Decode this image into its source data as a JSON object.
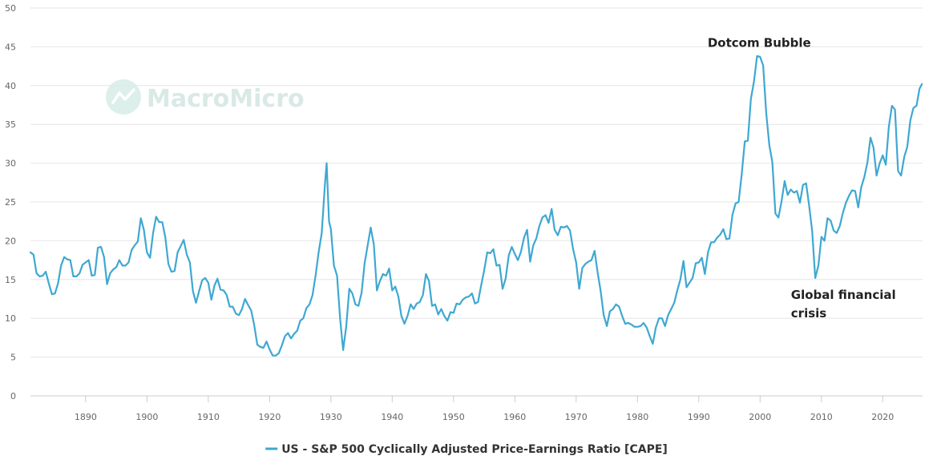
{
  "watermark": "MacroMicro",
  "chart_data": {
    "type": "line",
    "title": "",
    "xlabel": "",
    "ylabel": "",
    "xlim": [
      1881,
      2026.5
    ],
    "ylim": [
      0,
      50
    ],
    "y_ticks": [
      0,
      5,
      10,
      15,
      20,
      25,
      30,
      35,
      40,
      45,
      50
    ],
    "x_ticks": [
      1890,
      1900,
      1910,
      1920,
      1930,
      1940,
      1950,
      1960,
      1970,
      1980,
      1990,
      2000,
      2010,
      2020
    ],
    "grid": "horizontal",
    "legend_position": "bottom-center",
    "series_color": "#3ea8d2",
    "annotations": [
      {
        "text": "Dotcom Bubble",
        "x": 2000,
        "y": 45.5
      },
      {
        "text": "Global financial crisis",
        "lines": [
          "Global financial",
          "crisis"
        ],
        "x": 2010,
        "y": 12.5
      }
    ],
    "series": [
      {
        "name": "US - S&P 500 Cyclically Adjusted Price-Earnings Ratio [CAPE]",
        "x": [
          1881,
          1881.5,
          1882,
          1882.5,
          1883,
          1883.5,
          1884,
          1884.5,
          1885,
          1885.5,
          1886,
          1886.5,
          1887,
          1887.5,
          1888,
          1888.5,
          1889,
          1889.5,
          1890,
          1890.5,
          1891,
          1891.5,
          1892,
          1892.5,
          1893,
          1893.5,
          1894,
          1894.5,
          1895,
          1895.5,
          1896,
          1896.5,
          1897,
          1897.5,
          1898,
          1898.5,
          1899,
          1899.5,
          1900,
          1900.5,
          1901,
          1901.5,
          1902,
          1902.5,
          1903,
          1903.5,
          1904,
          1904.5,
          1905,
          1905.5,
          1906,
          1906.5,
          1907,
          1907.5,
          1908,
          1908.5,
          1909,
          1909.5,
          1910,
          1910.5,
          1911,
          1911.5,
          1912,
          1912.5,
          1913,
          1913.5,
          1914,
          1914.5,
          1915,
          1915.5,
          1916,
          1916.5,
          1917,
          1917.5,
          1918,
          1918.5,
          1919,
          1919.5,
          1920,
          1920.5,
          1921,
          1921.5,
          1922,
          1922.5,
          1923,
          1923.5,
          1924,
          1924.5,
          1925,
          1925.5,
          1926,
          1926.5,
          1927,
          1927.5,
          1928,
          1928.5,
          1929,
          1929.3,
          1929.7,
          1930,
          1930.5,
          1931,
          1931.5,
          1932,
          1932.5,
          1933,
          1933.5,
          1934,
          1934.5,
          1935,
          1935.5,
          1936,
          1936.5,
          1937,
          1937.5,
          1938,
          1938.5,
          1939,
          1939.5,
          1940,
          1940.5,
          1941,
          1941.5,
          1942,
          1942.5,
          1943,
          1943.5,
          1944,
          1944.5,
          1945,
          1945.5,
          1946,
          1946.5,
          1947,
          1947.5,
          1948,
          1948.5,
          1949,
          1949.5,
          1950,
          1950.5,
          1951,
          1951.5,
          1952,
          1952.5,
          1953,
          1953.5,
          1954,
          1954.5,
          1955,
          1955.5,
          1956,
          1956.5,
          1957,
          1957.5,
          1958,
          1958.5,
          1959,
          1959.5,
          1960,
          1960.5,
          1961,
          1961.5,
          1962,
          1962.5,
          1963,
          1963.5,
          1964,
          1964.5,
          1965,
          1965.5,
          1966,
          1966.5,
          1967,
          1967.5,
          1968,
          1968.5,
          1969,
          1969.5,
          1970,
          1970.5,
          1971,
          1971.5,
          1972,
          1972.5,
          1973,
          1973.5,
          1974,
          1974.5,
          1975,
          1975.5,
          1976,
          1976.5,
          1977,
          1977.5,
          1978,
          1978.5,
          1979,
          1979.5,
          1980,
          1980.5,
          1981,
          1981.5,
          1982,
          1982.5,
          1983,
          1983.5,
          1984,
          1984.5,
          1985,
          1985.5,
          1986,
          1986.5,
          1987,
          1987.5,
          1988,
          1988.5,
          1989,
          1989.5,
          1990,
          1990.5,
          1991,
          1991.5,
          1992,
          1992.5,
          1993,
          1993.5,
          1994,
          1994.5,
          1995,
          1995.5,
          1996,
          1996.5,
          1997,
          1997.5,
          1998,
          1998.5,
          1999,
          1999.5,
          2000,
          2000.5,
          2001,
          2001.5,
          2002,
          2002.5,
          2003,
          2003.5,
          2004,
          2004.5,
          2005,
          2005.5,
          2006,
          2006.5,
          2007,
          2007.5,
          2008,
          2008.5,
          2009,
          2009.5,
          2010,
          2010.5,
          2011,
          2011.5,
          2012,
          2012.5,
          2013,
          2013.5,
          2014,
          2014.5,
          2015,
          2015.5,
          2016,
          2016.5,
          2017,
          2017.5,
          2018,
          2018.5,
          2019,
          2019.5,
          2020,
          2020.5,
          2021,
          2021.5,
          2022,
          2022.5,
          2023,
          2023.5,
          2024,
          2024.5,
          2025,
          2025.5,
          2026,
          2026.4
        ],
        "y": [
          18.5,
          18.2,
          15.8,
          15.4,
          15.5,
          16.0,
          14.5,
          13.1,
          13.2,
          14.5,
          16.8,
          17.9,
          17.6,
          17.5,
          15.4,
          15.4,
          15.8,
          16.9,
          17.2,
          17.5,
          15.5,
          15.6,
          19.1,
          19.2,
          17.9,
          14.4,
          15.8,
          16.3,
          16.6,
          17.5,
          16.8,
          16.8,
          17.2,
          18.8,
          19.4,
          19.9,
          22.9,
          21.4,
          18.5,
          17.8,
          21.0,
          23.1,
          22.4,
          22.4,
          20.4,
          17.0,
          16.0,
          16.1,
          18.5,
          19.3,
          20.1,
          18.2,
          17.2,
          13.5,
          12.0,
          13.5,
          14.9,
          15.2,
          14.6,
          12.4,
          14.2,
          15.1,
          13.7,
          13.6,
          13.0,
          11.5,
          11.5,
          10.6,
          10.4,
          11.2,
          12.5,
          11.7,
          11.0,
          9.1,
          6.6,
          6.3,
          6.2,
          7.0,
          6.0,
          5.2,
          5.2,
          5.5,
          6.5,
          7.7,
          8.1,
          7.4,
          8.0,
          8.4,
          9.7,
          10.0,
          11.3,
          11.8,
          13.0,
          15.5,
          18.5,
          21.0,
          27.0,
          30.0,
          22.5,
          21.5,
          16.8,
          15.5,
          10.0,
          5.9,
          8.9,
          13.8,
          13.2,
          11.8,
          11.6,
          13.3,
          17.1,
          19.4,
          21.7,
          19.5,
          13.6,
          14.8,
          15.7,
          15.5,
          16.4,
          13.6,
          14.1,
          12.8,
          10.3,
          9.3,
          10.3,
          11.8,
          11.2,
          11.9,
          12.1,
          13.0,
          15.7,
          14.8,
          11.6,
          11.8,
          10.5,
          11.2,
          10.3,
          9.7,
          10.8,
          10.7,
          11.9,
          11.8,
          12.4,
          12.7,
          12.8,
          13.2,
          11.9,
          12.1,
          14.2,
          16.2,
          18.5,
          18.4,
          18.9,
          16.8,
          16.9,
          13.8,
          15.1,
          18.1,
          19.2,
          18.3,
          17.5,
          18.6,
          20.4,
          21.4,
          17.3,
          19.4,
          20.3,
          21.9,
          23.0,
          23.3,
          22.3,
          24.1,
          21.4,
          20.7,
          21.8,
          21.7,
          21.9,
          21.3,
          18.9,
          17.2,
          13.8,
          16.5,
          17.0,
          17.3,
          17.5,
          18.7,
          15.9,
          13.5,
          10.4,
          9.0,
          10.9,
          11.2,
          11.8,
          11.5,
          10.3,
          9.3,
          9.4,
          9.2,
          8.9,
          8.9,
          9.0,
          9.4,
          8.8,
          7.7,
          6.7,
          8.8,
          10.0,
          10.0,
          9.0,
          10.4,
          11.2,
          12.0,
          13.6,
          15.0,
          17.4,
          14.0,
          14.6,
          15.2,
          17.1,
          17.2,
          17.8,
          15.7,
          18.5,
          19.8,
          19.8,
          20.4,
          20.8,
          21.5,
          20.2,
          20.3,
          23.4,
          24.8,
          25.0,
          28.5,
          32.8,
          32.9,
          38.3,
          40.5,
          43.8,
          43.7,
          42.6,
          36.5,
          32.3,
          30.1,
          23.5,
          23.0,
          25.1,
          27.7,
          25.9,
          26.6,
          26.2,
          26.4,
          24.9,
          27.2,
          27.4,
          24.5,
          21.2,
          15.2,
          16.8,
          20.5,
          20.0,
          22.9,
          22.6,
          21.3,
          21.0,
          21.9,
          23.6,
          24.9,
          25.8,
          26.5,
          26.4,
          24.3,
          26.9,
          28.2,
          30.1,
          33.3,
          32.0,
          28.4,
          30.0,
          31.0,
          29.8,
          34.7,
          37.4,
          36.9,
          29.0,
          28.4,
          30.8,
          32.1,
          35.5,
          37.1,
          37.4,
          39.6,
          40.2
        ]
      }
    ]
  }
}
